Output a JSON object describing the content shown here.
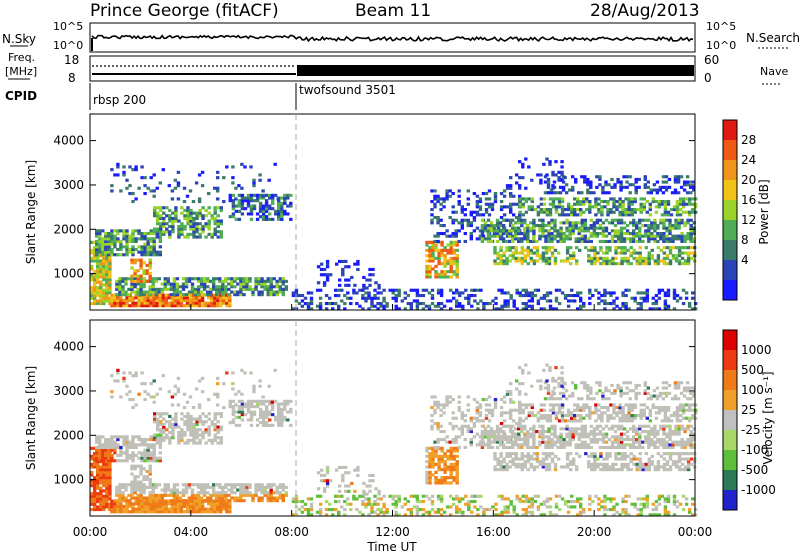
{
  "header": {
    "station": "Prince George (fitACF)",
    "beam": "Beam 11",
    "date": "28/Aug/2013"
  },
  "params": {
    "nsky_label": "N.Sky",
    "nsearch_label": "N.Search",
    "noise_ticks_left": [
      "10^5",
      "10^0"
    ],
    "noise_ticks_right": [
      "10^5",
      "10^0"
    ],
    "freq_label_1": "Freq.",
    "freq_label_2": "[MHz]",
    "freq_ticks": [
      "18",
      "8"
    ],
    "nave_label": "Nave",
    "nave_ticks": [
      "60",
      "0"
    ],
    "cpid_label": "CPID",
    "cpid_segments": [
      {
        "label": "rbsp 200",
        "start_hour": 0
      },
      {
        "label": "twofsound 3501",
        "start_hour": 8
      }
    ]
  },
  "colors": {
    "power_scale": [
      "#1a1aff",
      "#2b44b8",
      "#3a7a6a",
      "#4fae55",
      "#9ad42a",
      "#f0c21a",
      "#f0961a",
      "#ef5a14",
      "#e01a12"
    ],
    "velocity_scale": [
      "#2222cc",
      "#2c7a55",
      "#5fbf3a",
      "#a8d86a",
      "#c0c0c0",
      "#f0a028",
      "#f07a18",
      "#ee3a10",
      "#dd0000"
    ],
    "scatter_gray": "#c0c0b8"
  },
  "chart_data": [
    {
      "type": "heatmap",
      "title": "Power",
      "ylabel": "Slant Range [km]",
      "ylim": [
        180,
        4600
      ],
      "y_ticks": [
        "4000",
        "3000",
        "2000",
        "1000"
      ],
      "x_ticks": [
        "00:00",
        "04:00",
        "08:00",
        "12:00",
        "16:00",
        "20:00",
        "00:00"
      ],
      "xlabel": "",
      "colorbar_label": "Power [dB]",
      "colorbar_ticks": [
        "28",
        "24",
        "20",
        "16",
        "12",
        "8",
        "4"
      ]
    },
    {
      "type": "heatmap",
      "title": "Velocity",
      "ylabel": "Slant Range [km]",
      "ylim": [
        180,
        4600
      ],
      "y_ticks": [
        "4000",
        "3000",
        "2000",
        "1000"
      ],
      "x_ticks": [
        "00:00",
        "04:00",
        "08:00",
        "12:00",
        "16:00",
        "20:00",
        "00:00"
      ],
      "xlabel": "Time UT",
      "colorbar_label": "Velocity [m s⁻¹]",
      "colorbar_ticks": [
        "1000",
        "500",
        "100",
        "25",
        "-25",
        "-100",
        "-500",
        "-1000"
      ]
    }
  ],
  "bands": [
    {
      "t0": 0.0,
      "t1": 0.8,
      "r0": 300,
      "r1": 1700,
      "dens": 0.85,
      "lvl": [
        3,
        6
      ]
    },
    {
      "t0": 0.8,
      "t1": 5.5,
      "r0": 250,
      "r1": 520,
      "dens": 0.95,
      "lvl": [
        5,
        8
      ]
    },
    {
      "t0": 1.0,
      "t1": 7.8,
      "r0": 500,
      "r1": 900,
      "dens": 0.7,
      "lvl": [
        1,
        4
      ]
    },
    {
      "t0": 0.2,
      "t1": 2.8,
      "r0": 1400,
      "r1": 2000,
      "dens": 0.75,
      "lvl": [
        1,
        4
      ]
    },
    {
      "t0": 2.5,
      "t1": 5.2,
      "r0": 1800,
      "r1": 2500,
      "dens": 0.6,
      "lvl": [
        1,
        4
      ]
    },
    {
      "t0": 5.5,
      "t1": 8.0,
      "r0": 2200,
      "r1": 2800,
      "dens": 0.55,
      "lvl": [
        0,
        3
      ]
    },
    {
      "t0": 1.6,
      "t1": 2.4,
      "r0": 800,
      "r1": 1300,
      "dens": 0.55,
      "lvl": [
        4,
        7
      ]
    },
    {
      "t0": 0.8,
      "t1": 7.5,
      "r0": 2600,
      "r1": 3500,
      "dens": 0.12,
      "lvl": [
        0,
        2
      ]
    },
    {
      "t0": 8.0,
      "t1": 24.0,
      "r0": 180,
      "r1": 650,
      "dens": 0.35,
      "lvl": [
        0,
        2
      ]
    },
    {
      "t0": 9.0,
      "t1": 11.5,
      "r0": 650,
      "r1": 1300,
      "dens": 0.18,
      "lvl": [
        0,
        1
      ]
    },
    {
      "t0": 13.3,
      "t1": 14.6,
      "r0": 900,
      "r1": 1700,
      "dens": 0.7,
      "lvl": [
        3,
        7
      ]
    },
    {
      "t0": 13.5,
      "t1": 17.0,
      "r0": 1700,
      "r1": 2900,
      "dens": 0.3,
      "lvl": [
        0,
        2
      ]
    },
    {
      "t0": 16.0,
      "t1": 24.0,
      "r0": 1200,
      "r1": 1600,
      "dens": 0.6,
      "lvl": [
        2,
        5
      ]
    },
    {
      "t0": 15.5,
      "t1": 24.0,
      "r0": 1700,
      "r1": 2200,
      "dens": 0.65,
      "lvl": [
        1,
        4
      ]
    },
    {
      "t0": 17.0,
      "t1": 24.0,
      "r0": 2300,
      "r1": 2700,
      "dens": 0.6,
      "lvl": [
        1,
        4
      ]
    },
    {
      "t0": 18.0,
      "t1": 24.0,
      "r0": 2800,
      "r1": 3200,
      "dens": 0.4,
      "lvl": [
        0,
        2
      ]
    },
    {
      "t0": 16.5,
      "t1": 19.0,
      "r0": 2900,
      "r1": 3600,
      "dens": 0.15,
      "lvl": [
        0,
        1
      ]
    }
  ]
}
